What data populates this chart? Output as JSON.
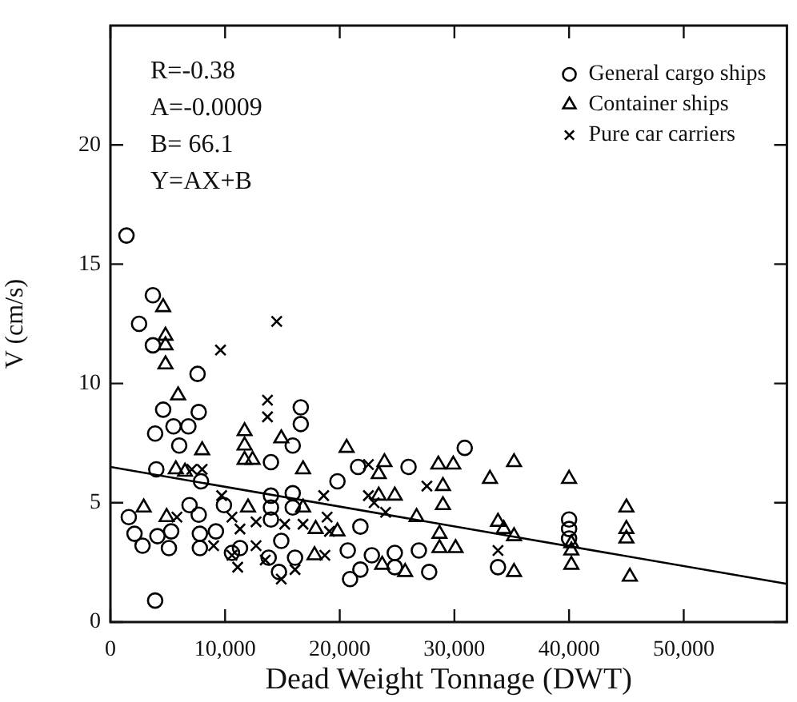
{
  "chart_data": {
    "type": "scatter",
    "xlabel": "Dead Weight Tonnage (DWT)",
    "ylabel": "V (cm/s)",
    "annotations": [
      "R=-0.38",
      "A=-0.0009",
      "B= 66.1",
      "Y=AX+B"
    ],
    "xlim": [
      0,
      59000
    ],
    "ylim": [
      0,
      25
    ],
    "xticks": [
      0,
      {
        "value": 10000,
        "label": "10,000"
      },
      {
        "value": 20000,
        "label": "20,000"
      },
      {
        "value": 30000,
        "label": "30,000"
      },
      {
        "value": 40000,
        "label": "40,000"
      },
      {
        "value": 50000,
        "label": "50,000"
      }
    ],
    "yticks": [
      0,
      5,
      10,
      15,
      20
    ],
    "legend": "top right",
    "series": [
      {
        "name": "General cargo ships",
        "color": "#000000",
        "marker": "circle",
        "x": [
          1400,
          2500,
          3700,
          3700,
          7600,
          4600,
          7700,
          3900,
          5500,
          6800,
          6000,
          4000,
          7900,
          16600,
          16600,
          15900,
          14000,
          19800,
          21600,
          1600,
          2100,
          2800,
          4100,
          5300,
          5100,
          6900,
          7700,
          7800,
          7800,
          9200,
          9900,
          10600,
          11300,
          14000,
          14000,
          14000,
          15900,
          15900,
          14900,
          13800,
          14700,
          16100,
          21800,
          20700,
          22800,
          21800,
          20900,
          24800,
          24800,
          26900,
          27800,
          26000,
          30900,
          33800,
          40000,
          40000,
          40000,
          3900
        ],
        "values": [
          16.2,
          12.5,
          13.7,
          11.6,
          10.4,
          8.9,
          8.8,
          7.9,
          8.2,
          8.2,
          7.4,
          6.4,
          5.9,
          9.0,
          8.3,
          7.4,
          6.7,
          5.9,
          6.5,
          4.4,
          3.7,
          3.2,
          3.6,
          3.8,
          3.1,
          4.9,
          4.5,
          3.7,
          3.1,
          3.8,
          4.9,
          2.9,
          3.1,
          5.3,
          4.8,
          4.3,
          5.4,
          4.8,
          3.4,
          2.7,
          2.1,
          2.7,
          4.0,
          3.0,
          2.8,
          2.2,
          1.8,
          2.9,
          2.3,
          3.0,
          2.1,
          6.5,
          7.3,
          2.3,
          4.3,
          3.9,
          3.5,
          0.9
        ]
      },
      {
        "name": "Container ships",
        "color": "#000000",
        "marker": "triangle",
        "x": [
          4600,
          4800,
          4800,
          4800,
          5900,
          8000,
          5700,
          6500,
          2900,
          4900,
          11700,
          11700,
          11700,
          12400,
          14900,
          16800,
          12000,
          20600,
          16800,
          17900,
          19800,
          17800,
          23900,
          23400,
          28600,
          29900,
          29000,
          29000,
          24800,
          23400,
          26700,
          28700,
          28700,
          30100,
          25700,
          23700,
          35200,
          33100,
          40000,
          33800,
          34300,
          35200,
          35200,
          40200,
          40200,
          40200,
          45000,
          45000,
          45000,
          45300
        ],
        "values": [
          13.2,
          12.0,
          11.6,
          10.8,
          9.5,
          7.2,
          6.4,
          6.3,
          4.8,
          4.4,
          8.0,
          7.4,
          6.8,
          6.8,
          7.7,
          6.4,
          4.8,
          7.3,
          4.8,
          3.9,
          3.8,
          2.8,
          6.7,
          6.2,
          6.6,
          6.6,
          5.7,
          4.9,
          5.3,
          5.3,
          4.4,
          3.7,
          3.1,
          3.1,
          2.1,
          2.4,
          6.7,
          6.0,
          6.0,
          4.2,
          3.9,
          3.6,
          2.1,
          3.3,
          3.0,
          2.4,
          4.8,
          3.9,
          3.5,
          1.9
        ]
      },
      {
        "name": "Pure car carriers",
        "color": "#000000",
        "marker": "cross",
        "x": [
          14500,
          9600,
          13700,
          13700,
          7100,
          8000,
          5800,
          9700,
          10600,
          11300,
          9000,
          10600,
          11100,
          12700,
          12700,
          13500,
          15200,
          14900,
          16800,
          18900,
          19100,
          18600,
          16100,
          18700,
          22500,
          27600,
          22500,
          23000,
          24000,
          33800
        ],
        "values": [
          12.6,
          11.4,
          9.3,
          8.6,
          6.4,
          6.4,
          4.4,
          5.3,
          4.4,
          3.9,
          3.2,
          2.8,
          2.3,
          4.2,
          3.2,
          2.6,
          4.1,
          1.8,
          4.1,
          4.4,
          3.8,
          5.3,
          2.2,
          2.8,
          6.6,
          5.7,
          5.3,
          5.0,
          4.6,
          3.0
        ]
      },
      {
        "type": "line",
        "color": "#000000",
        "marker": "none",
        "x": [
          0,
          59000
        ],
        "values": [
          6.5,
          1.6
        ]
      }
    ]
  }
}
